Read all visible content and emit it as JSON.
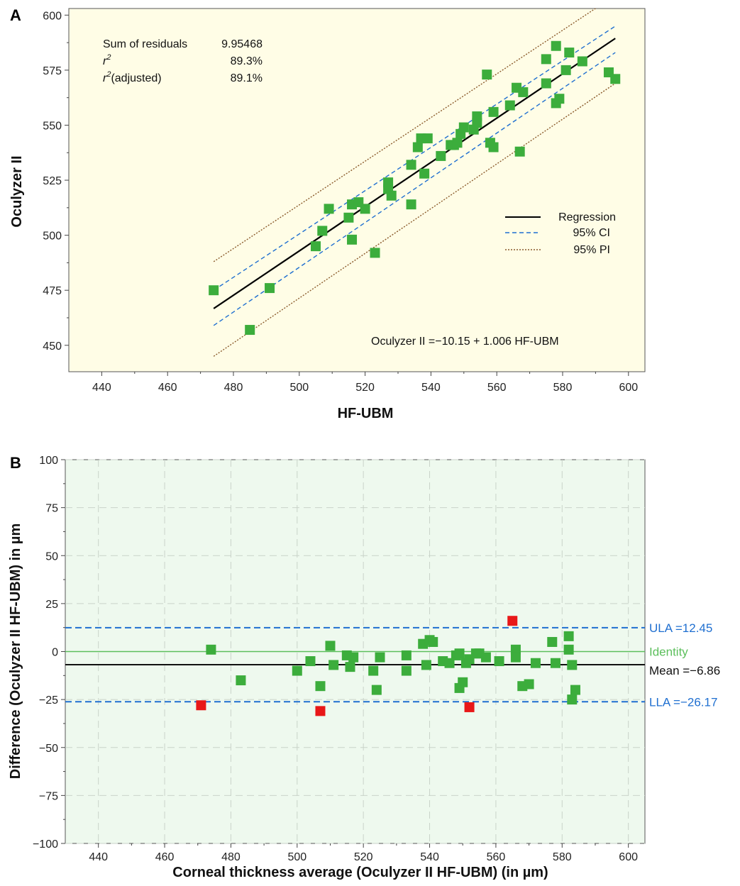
{
  "chart_data": [
    {
      "panel": "A",
      "type": "scatter",
      "xlabel": "HF-UBM",
      "ylabel": "Oculyzer II",
      "xlim": [
        430,
        605
      ],
      "ylim": [
        438,
        603
      ],
      "xticks": [
        440,
        460,
        480,
        500,
        520,
        540,
        560,
        580,
        600
      ],
      "yticks": [
        450,
        475,
        500,
        525,
        550,
        575,
        600
      ],
      "grid": false,
      "legend_position": "right",
      "stats": [
        {
          "label": "Sum of residuals",
          "value": "9.95468"
        },
        {
          "label": "r",
          "sup": "2",
          "value": "89.3%"
        },
        {
          "label": "r",
          "sup": "2",
          "suffix": "(adjusted)",
          "value": "89.1%"
        }
      ],
      "equation": "Oculyzer II =−10.15 + 1.006 HF-UBM",
      "regression": {
        "intercept": -10.15,
        "slope": 1.006,
        "x_range": [
          474,
          596
        ]
      },
      "legend": [
        {
          "name": "Regression",
          "color": "#000000",
          "style": "solid"
        },
        {
          "name": "95% CI",
          "color": "#1f6fd0",
          "style": "dashed"
        },
        {
          "name": "95% PI",
          "color": "#8a5a2b",
          "style": "dotted"
        }
      ],
      "ci_band": {
        "upper": [
          [
            474,
            475
          ],
          [
            596,
            595
          ]
        ],
        "lower": [
          [
            474,
            459
          ],
          [
            596,
            583
          ]
        ]
      },
      "pi_band": {
        "upper": [
          [
            474,
            488
          ],
          [
            596,
            609
          ]
        ],
        "lower": [
          [
            474,
            445
          ],
          [
            596,
            569
          ]
        ]
      },
      "point_color": "#3cad3c",
      "points": [
        [
          474,
          475
        ],
        [
          485,
          457
        ],
        [
          491,
          476
        ],
        [
          505,
          495
        ],
        [
          507,
          502
        ],
        [
          509,
          512
        ],
        [
          515,
          508
        ],
        [
          516,
          514
        ],
        [
          516,
          498
        ],
        [
          518,
          515
        ],
        [
          520,
          512
        ],
        [
          523,
          492
        ],
        [
          527,
          524
        ],
        [
          527,
          521
        ],
        [
          528,
          518
        ],
        [
          534,
          532
        ],
        [
          534,
          514
        ],
        [
          536,
          540
        ],
        [
          537,
          544
        ],
        [
          538,
          528
        ],
        [
          539,
          544
        ],
        [
          543,
          536
        ],
        [
          546,
          541
        ],
        [
          547,
          541
        ],
        [
          548,
          542
        ],
        [
          549,
          546
        ],
        [
          550,
          549
        ],
        [
          553,
          548
        ],
        [
          554,
          551
        ],
        [
          554,
          554
        ],
        [
          557,
          573
        ],
        [
          558,
          542
        ],
        [
          559,
          540
        ],
        [
          559,
          556
        ],
        [
          564,
          559
        ],
        [
          566,
          567
        ],
        [
          567,
          538
        ],
        [
          568,
          565
        ],
        [
          575,
          580
        ],
        [
          575,
          569
        ],
        [
          578,
          586
        ],
        [
          578,
          560
        ],
        [
          579,
          562
        ],
        [
          581,
          575
        ],
        [
          582,
          583
        ],
        [
          586,
          579
        ],
        [
          594,
          574
        ],
        [
          596,
          571
        ]
      ]
    },
    {
      "panel": "B",
      "type": "scatter",
      "xlabel": "Corneal thickness average (Oculyzer II HF-UBM) (in µm)",
      "ylabel": "Difference (Oculyzer II HF-UBM) in µm",
      "xlim": [
        430,
        605
      ],
      "ylim": [
        -100,
        100
      ],
      "xticks": [
        440,
        460,
        480,
        500,
        520,
        540,
        560,
        580,
        600
      ],
      "yticks": [
        -100,
        -75,
        -50,
        -25,
        0,
        25,
        50,
        75,
        100
      ],
      "ytick_labels": [
        "−100",
        "−75",
        "−50",
        "−25",
        "0",
        "25",
        "50",
        "75",
        "100"
      ],
      "grid": true,
      "reference_lines": [
        {
          "label": "ULA =12.45",
          "value": 12.45,
          "color": "#1f6fd0",
          "style": "dashed"
        },
        {
          "label": "Identity",
          "value": 0,
          "color": "#5cbf5c",
          "style": "solid"
        },
        {
          "label": "Mean =−6.86",
          "value": -6.86,
          "color": "#111111",
          "style": "solid"
        },
        {
          "label": "LLA =−26.17",
          "value": -26.17,
          "color": "#1f6fd0",
          "style": "dashed"
        }
      ],
      "point_color": "#3cad3c",
      "outlier_color": "#e81818",
      "points": [
        [
          474,
          1
        ],
        [
          483,
          -15
        ],
        [
          500,
          -10
        ],
        [
          504,
          -5
        ],
        [
          507,
          -18
        ],
        [
          510,
          3
        ],
        [
          511,
          -7
        ],
        [
          515,
          -2
        ],
        [
          516,
          -8
        ],
        [
          517,
          -3
        ],
        [
          523,
          -10
        ],
        [
          524,
          -20
        ],
        [
          525,
          -3
        ],
        [
          533,
          -2
        ],
        [
          533,
          -10
        ],
        [
          538,
          4
        ],
        [
          539,
          -7
        ],
        [
          540,
          6
        ],
        [
          541,
          5
        ],
        [
          544,
          -5
        ],
        [
          546,
          -6
        ],
        [
          548,
          -2
        ],
        [
          549,
          -1
        ],
        [
          549,
          -19
        ],
        [
          550,
          -16
        ],
        [
          551,
          -6
        ],
        [
          552,
          -4
        ],
        [
          554,
          -1
        ],
        [
          555,
          -1
        ],
        [
          557,
          -3
        ],
        [
          561,
          -5
        ],
        [
          566,
          1
        ],
        [
          566,
          -3
        ],
        [
          568,
          -18
        ],
        [
          570,
          -17
        ],
        [
          572,
          -6
        ],
        [
          577,
          5
        ],
        [
          578,
          -6
        ],
        [
          582,
          8
        ],
        [
          582,
          1
        ],
        [
          583,
          -7
        ],
        [
          583,
          -25
        ],
        [
          584,
          -20
        ]
      ],
      "outliers": [
        [
          471,
          -28
        ],
        [
          507,
          -31
        ],
        [
          552,
          -29
        ],
        [
          565,
          16
        ]
      ]
    }
  ],
  "panel_labels": [
    "A",
    "B"
  ]
}
